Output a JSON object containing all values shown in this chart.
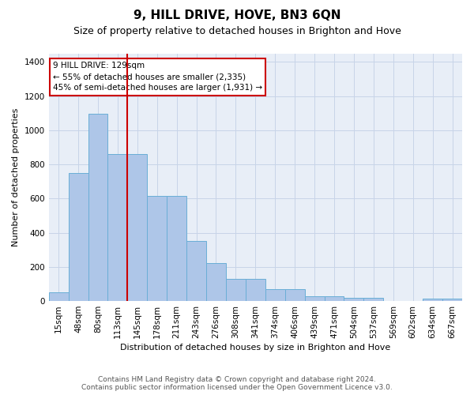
{
  "title": "9, HILL DRIVE, HOVE, BN3 6QN",
  "subtitle": "Size of property relative to detached houses in Brighton and Hove",
  "xlabel": "Distribution of detached houses by size in Brighton and Hove",
  "ylabel": "Number of detached properties",
  "footer_line1": "Contains HM Land Registry data © Crown copyright and database right 2024.",
  "footer_line2": "Contains public sector information licensed under the Open Government Licence v3.0.",
  "categories": [
    "15sqm",
    "48sqm",
    "80sqm",
    "113sqm",
    "145sqm",
    "178sqm",
    "211sqm",
    "243sqm",
    "276sqm",
    "308sqm",
    "341sqm",
    "374sqm",
    "406sqm",
    "439sqm",
    "471sqm",
    "504sqm",
    "537sqm",
    "569sqm",
    "602sqm",
    "634sqm",
    "667sqm"
  ],
  "bar_values": [
    50,
    750,
    1095,
    860,
    860,
    615,
    615,
    350,
    220,
    130,
    130,
    68,
    68,
    30,
    30,
    18,
    18,
    0,
    0,
    12,
    12
  ],
  "bar_color": "#aec6e8",
  "bar_edge_color": "#6aaed6",
  "vline_x": 3.5,
  "vline_color": "#cc0000",
  "annotation_text": "9 HILL DRIVE: 129sqm\n← 55% of detached houses are smaller (2,335)\n45% of semi-detached houses are larger (1,931) →",
  "annotation_box_edgecolor": "#cc0000",
  "ylim": [
    0,
    1450
  ],
  "yticks": [
    0,
    200,
    400,
    600,
    800,
    1000,
    1200,
    1400
  ],
  "grid_color": "#c8d4e8",
  "bg_color": "#e8eef7",
  "title_fontsize": 11,
  "subtitle_fontsize": 9,
  "ylabel_fontsize": 8,
  "xlabel_fontsize": 8,
  "tick_fontsize": 7.5,
  "footer_fontsize": 6.5
}
